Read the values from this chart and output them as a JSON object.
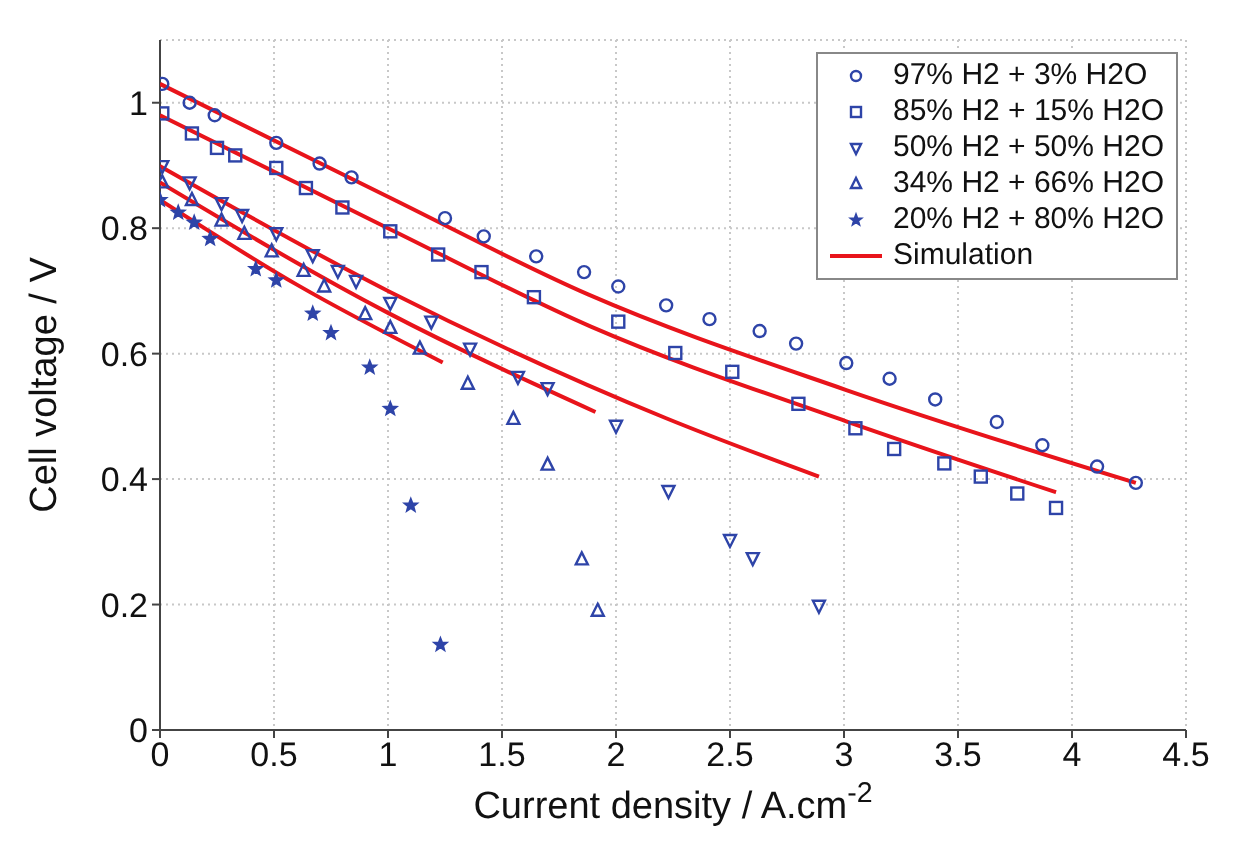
{
  "chart_data": {
    "type": "scatter",
    "xlabel": "Current density / A.cm$^{-2}$",
    "ylabel": "Cell voltage / V",
    "xlim": [
      0,
      4.5
    ],
    "xticks": [
      0,
      0.5,
      1,
      1.5,
      2,
      2.5,
      3,
      3.5,
      4,
      4.5
    ],
    "ylim": [
      0,
      1.1
    ],
    "yticks": [
      0,
      0.2,
      0.4,
      0.6,
      0.8,
      1
    ],
    "grid": true,
    "legend": "top right",
    "series": [
      {
        "name": "97% H2 + 3% H2O",
        "marker": "circle",
        "color": "#2e44a8",
        "x": [
          0.01,
          0.13,
          0.24,
          0.51,
          0.7,
          0.84,
          1.25,
          1.42,
          1.65,
          1.86,
          2.01,
          2.22,
          2.41,
          2.63,
          2.79,
          3.01,
          3.2,
          3.4,
          3.67,
          3.87,
          4.11,
          4.28
        ],
        "values": [
          1.03,
          1.0,
          0.98,
          0.936,
          0.903,
          0.881,
          0.816,
          0.787,
          0.755,
          0.73,
          0.707,
          0.677,
          0.655,
          0.636,
          0.616,
          0.585,
          0.56,
          0.527,
          0.491,
          0.454,
          0.42,
          0.394
        ]
      },
      {
        "name": "85% H2 + 15% H2O",
        "marker": "square",
        "color": "#2e44a8",
        "x": [
          0.01,
          0.14,
          0.25,
          0.33,
          0.51,
          0.64,
          0.8,
          1.01,
          1.22,
          1.41,
          1.64,
          2.01,
          2.26,
          2.51,
          2.8,
          3.05,
          3.22,
          3.44,
          3.6,
          3.76,
          3.93
        ],
        "values": [
          0.983,
          0.951,
          0.928,
          0.916,
          0.896,
          0.864,
          0.833,
          0.795,
          0.758,
          0.73,
          0.69,
          0.651,
          0.601,
          0.571,
          0.52,
          0.481,
          0.448,
          0.425,
          0.404,
          0.377,
          0.354
        ]
      },
      {
        "name": "50% H2 + 50% H2O",
        "marker": "triangle-down",
        "color": "#2e44a8",
        "x": [
          0.01,
          0.13,
          0.27,
          0.36,
          0.51,
          0.67,
          0.78,
          0.86,
          1.01,
          1.19,
          1.36,
          1.57,
          1.7,
          2.0,
          2.23,
          2.5,
          2.6,
          2.89
        ],
        "values": [
          0.899,
          0.873,
          0.84,
          0.821,
          0.792,
          0.757,
          0.732,
          0.716,
          0.681,
          0.651,
          0.608,
          0.563,
          0.545,
          0.485,
          0.381,
          0.303,
          0.274,
          0.198
        ]
      },
      {
        "name": "34% H2 + 66% H2O",
        "marker": "triangle",
        "color": "#2e44a8",
        "x": [
          0.01,
          0.14,
          0.27,
          0.37,
          0.49,
          0.63,
          0.72,
          0.9,
          1.01,
          1.14,
          1.35,
          1.55,
          1.7,
          1.85,
          1.92
        ],
        "values": [
          0.873,
          0.845,
          0.812,
          0.791,
          0.763,
          0.732,
          0.707,
          0.663,
          0.641,
          0.608,
          0.552,
          0.496,
          0.423,
          0.272,
          0.19
        ]
      },
      {
        "name": "20% H2 + 80% H2O",
        "marker": "star",
        "color": "#2e44a8",
        "x": [
          0.0,
          0.08,
          0.15,
          0.22,
          0.42,
          0.51,
          0.67,
          0.75,
          0.92,
          1.01,
          1.1,
          1.23
        ],
        "values": [
          0.845,
          0.825,
          0.809,
          0.783,
          0.735,
          0.717,
          0.664,
          0.633,
          0.578,
          0.512,
          0.358,
          0.136
        ]
      },
      {
        "name": "Simulation",
        "type": "line",
        "color": "#e8141b",
        "x": [
          0,
          1.0,
          1.88,
          3.01,
          4.28
        ],
        "values": [
          1.03,
          0.85,
          0.694,
          0.542,
          0.394
        ]
      },
      {
        "type": "line",
        "color": "#e8141b",
        "x": [
          0,
          1.0,
          1.89,
          3.01,
          3.93
        ],
        "values": [
          0.98,
          0.8,
          0.643,
          0.492,
          0.379
        ]
      },
      {
        "type": "line",
        "color": "#e8141b",
        "x": [
          0,
          1.0,
          2.22,
          2.89
        ],
        "values": [
          0.899,
          0.7,
          0.497,
          0.404
        ]
      },
      {
        "type": "line",
        "color": "#e8141b",
        "x": [
          0,
          1.0,
          1.91
        ],
        "values": [
          0.873,
          0.665,
          0.507
        ]
      },
      {
        "type": "line",
        "color": "#e8141b",
        "x": [
          0,
          0.6,
          1.24
        ],
        "values": [
          0.845,
          0.71,
          0.586
        ]
      }
    ]
  }
}
